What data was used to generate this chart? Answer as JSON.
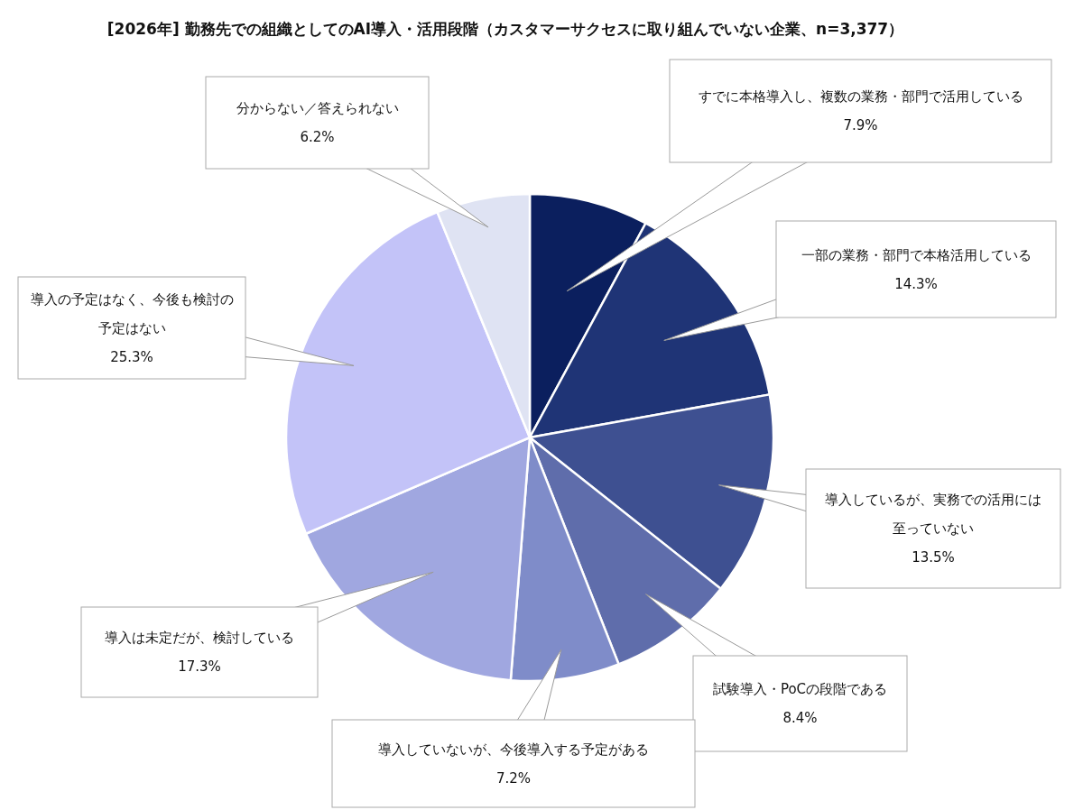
{
  "chart_data": {
    "type": "pie",
    "title": "[2026年] 勤務先での組織としてのAI導入・活用段階（カスタマーサクセスに取り組んでいない企業、n=3,377）",
    "categories": [
      "すでに本格導入し、複数の業務・部門で活用している",
      "一部の業務・部門で本格活用している",
      "導入しているが、実務での活用には至っていない",
      "試験導入・PoCの段階である",
      "導入していないが、今後導入する予定がある",
      "導入は未定だが、検討している",
      "導入の予定はなく、今後も検討の予定はない",
      "分からない／答えられない"
    ],
    "values": [
      7.9,
      14.3,
      13.5,
      8.4,
      7.2,
      17.3,
      25.3,
      6.2
    ],
    "colors": [
      "#0b1f5e",
      "#1f3476",
      "#3e5091",
      "#5f6dab",
      "#7f8cc9",
      "#a0a7e0",
      "#c3c3f8",
      "#dfe3f3"
    ],
    "value_labels": [
      "7.9%",
      "14.3%",
      "13.5%",
      "8.4%",
      "7.2%",
      "17.3%",
      "25.3%",
      "6.2%"
    ]
  }
}
